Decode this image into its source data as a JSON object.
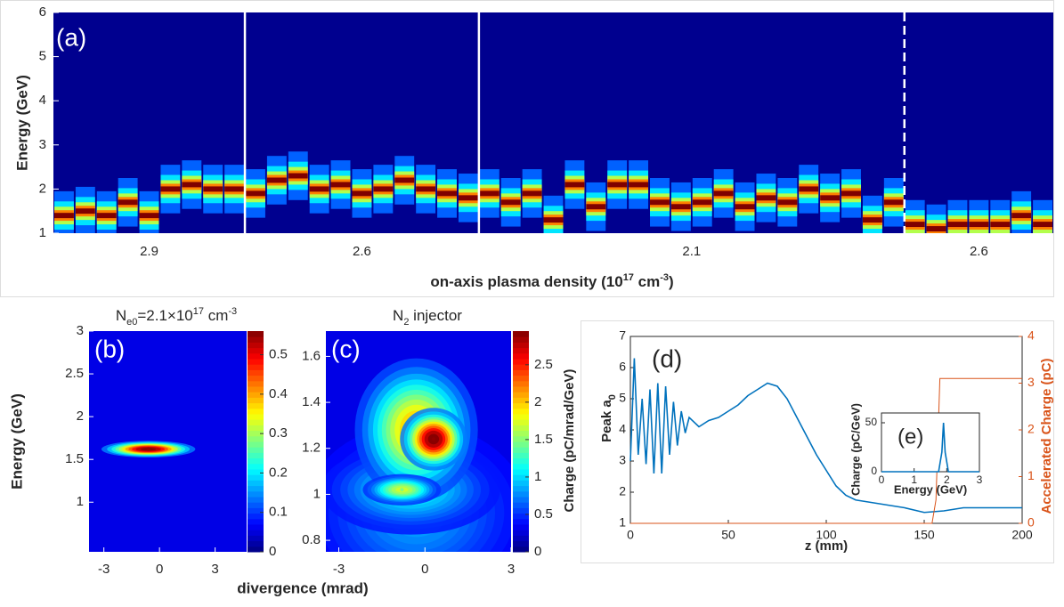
{
  "chart_data": [
    {
      "type": "shot-heatmap",
      "label": "(a)",
      "ylabel": "Energy (GeV)",
      "xlabel": [
        {
          "text": "on-axis plasma density  (10"
        },
        {
          "sup": "17"
        },
        {
          "text": " cm"
        },
        {
          "sup": "-3"
        },
        {
          "text": ")"
        }
      ],
      "ylim": [
        1,
        6
      ],
      "yticks": [
        1,
        2,
        3,
        4,
        5,
        6
      ],
      "groups": [
        {
          "label": "2.9",
          "peaks": [
            1.4,
            1.5,
            1.4,
            1.7,
            1.4,
            2.0,
            2.1,
            2.0,
            2.0
          ]
        },
        {
          "label": "2.6",
          "peaks": [
            1.9,
            2.2,
            2.3,
            2.0,
            2.1,
            1.9,
            2.0,
            2.2,
            2.0,
            1.9,
            1.8
          ]
        },
        {
          "label": "2.1",
          "peaks": [
            1.9,
            1.7,
            1.9,
            1.3,
            2.1,
            1.6,
            2.1,
            2.1,
            1.7,
            1.6,
            1.7,
            1.9,
            1.6,
            1.8,
            1.7,
            2.0,
            1.8,
            1.9,
            1.3,
            1.7
          ]
        },
        {
          "label": "2.6",
          "peaks": [
            1.2,
            1.1,
            1.2,
            1.2,
            1.2,
            1.4,
            1.2
          ]
        }
      ]
    },
    {
      "type": "heatmap",
      "label": "(b)",
      "title": [
        {
          "text": "N"
        },
        {
          "sub": "e0"
        },
        {
          "text": "=2.1×10"
        },
        {
          "sup": "17"
        },
        {
          "text": " cm"
        },
        {
          "sup": "-3"
        }
      ],
      "ylabel": "Energy (GeV)",
      "xlabel": "divergence (mrad)",
      "xlim": [
        -3.8,
        4.7
      ],
      "xticks": [
        -3,
        0,
        3
      ],
      "ylim": [
        0.42,
        3
      ],
      "yticks": [
        1,
        1.5,
        2,
        2.5,
        3
      ],
      "clim": [
        0,
        0.56
      ],
      "cticks": [
        0,
        0.1,
        0.2,
        0.3,
        0.4,
        0.5
      ],
      "blobs": [
        {
          "x": -0.6,
          "y": 1.62,
          "peak": 0.55,
          "sx": 1.3,
          "sy": 0.05
        }
      ]
    },
    {
      "type": "heatmap",
      "label": "(c)",
      "title": [
        {
          "text": "N"
        },
        {
          "sub": "2"
        },
        {
          "text": " injector"
        }
      ],
      "clabel": "Charge (pC/mrad/GeV)",
      "xlim": [
        -3.45,
        3
      ],
      "xticks": [
        -3,
        0,
        3
      ],
      "ylim": [
        0.75,
        1.71
      ],
      "yticks": [
        0.8,
        1,
        1.2,
        1.4,
        1.6
      ],
      "clim": [
        0,
        2.95
      ],
      "cticks": [
        0,
        0.5,
        1,
        1.5,
        2,
        2.5
      ],
      "blobs": [
        {
          "x": -0.3,
          "y": 0.92,
          "peak": 0.6,
          "sx": 2.0,
          "sy": 0.2
        },
        {
          "x": -0.5,
          "y": 1.02,
          "peak": 0.9,
          "sx": 1.6,
          "sy": 0.1
        },
        {
          "x": -0.3,
          "y": 1.28,
          "peak": 1.9,
          "sx": 1.1,
          "sy": 0.16
        },
        {
          "x": -0.8,
          "y": 1.02,
          "peak": 1.5,
          "sx": 0.7,
          "sy": 0.035
        },
        {
          "x": 0.3,
          "y": 1.24,
          "peak": 2.9,
          "sx": 0.6,
          "sy": 0.07
        }
      ]
    },
    {
      "type": "line",
      "label": "(d)",
      "xlabel": "z (mm)",
      "ylabel": [
        {
          "text": "Peak a"
        },
        {
          "sub": "0"
        }
      ],
      "y2label": "Accelerated Charge (pC)",
      "xlim": [
        0,
        200
      ],
      "xticks": [
        0,
        50,
        100,
        150,
        200
      ],
      "ylim": [
        1,
        7
      ],
      "yticks": [
        1,
        2,
        3,
        4,
        5,
        6,
        7
      ],
      "y2lim": [
        0,
        4
      ],
      "y2ticks": [
        0,
        1,
        2,
        3,
        4
      ],
      "series": [
        {
          "color": "#0072bd",
          "x": [
            0,
            2,
            4,
            6,
            8,
            10,
            12,
            14,
            16,
            18,
            20,
            22,
            24,
            26,
            28,
            30,
            35,
            40,
            45,
            50,
            55,
            60,
            65,
            70,
            75,
            80,
            85,
            90,
            95,
            100,
            105,
            110,
            115,
            120,
            130,
            140,
            150,
            160,
            170,
            180,
            190,
            200
          ],
          "values": [
            3.0,
            6.3,
            3.2,
            5.0,
            2.9,
            5.3,
            2.6,
            5.5,
            2.6,
            5.4,
            3.2,
            4.9,
            3.5,
            4.6,
            3.9,
            4.4,
            4.1,
            4.3,
            4.4,
            4.6,
            4.8,
            5.1,
            5.3,
            5.5,
            5.4,
            5.0,
            4.4,
            3.8,
            3.2,
            2.7,
            2.2,
            1.9,
            1.75,
            1.7,
            1.6,
            1.5,
            1.35,
            1.4,
            1.5,
            1.5,
            1.5,
            1.5
          ]
        },
        {
          "color": "#d95319",
          "axis": "y2",
          "x": [
            0,
            154,
            156,
            158,
            200
          ],
          "values": [
            0,
            0,
            0.5,
            3.1,
            3.1
          ]
        }
      ],
      "inset": {
        "label": "(e)",
        "xlabel": "Energy (GeV)",
        "ylabel": "Charge (pC/GeV)",
        "xlim": [
          0,
          3
        ],
        "xticks": [
          0,
          1,
          2,
          3
        ],
        "ylim": [
          0,
          60
        ],
        "yticks": [
          0,
          50
        ],
        "series": [
          {
            "color": "#0072bd",
            "x": [
              0,
              1.75,
              1.85,
              1.9,
              1.95,
              2.05,
              3
            ],
            "values": [
              0,
              0,
              20,
              50,
              20,
              0,
              0
            ]
          }
        ]
      }
    }
  ]
}
